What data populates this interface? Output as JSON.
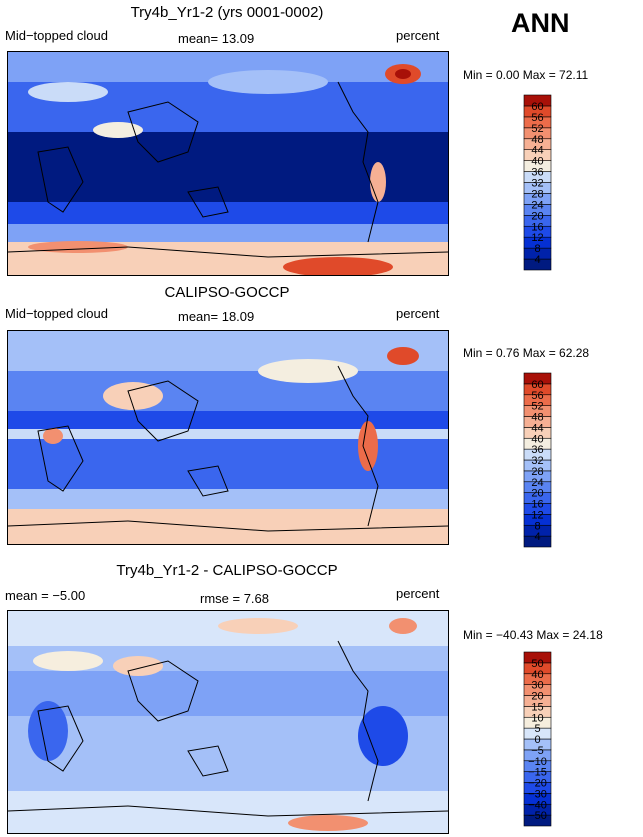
{
  "season": "ANN",
  "panels": [
    {
      "title": "Try4b_Yr1-2 (yrs 0001-0002)",
      "left_label": "Mid−topped cloud",
      "center_label": "mean=  13.09",
      "right_label": "percent",
      "minmax": "Min =    0.00 Max =  72.11",
      "colorbar": {
        "levels": [
          "4",
          "8",
          "12",
          "16",
          "20",
          "24",
          "28",
          "32",
          "36",
          "40",
          "44",
          "48",
          "52",
          "56",
          "60"
        ],
        "colors": [
          "#001a80",
          "#0022aa",
          "#0530d4",
          "#1e4ae8",
          "#3a66ee",
          "#5a84f2",
          "#7ea2f6",
          "#a4c0f8",
          "#cadcf8",
          "#f4eee0",
          "#f8d0b8",
          "#f6b094",
          "#f29070",
          "#ec6c4a",
          "#e04a2a",
          "#a81008"
        ]
      }
    },
    {
      "title": "CALIPSO-GOCCP",
      "left_label": "Mid−topped cloud",
      "center_label": "mean=  18.09",
      "right_label": "percent",
      "minmax": "Min =    0.76 Max =  62.28",
      "colorbar": {
        "levels": [
          "4",
          "8",
          "12",
          "16",
          "20",
          "24",
          "28",
          "32",
          "36",
          "40",
          "44",
          "48",
          "52",
          "56",
          "60"
        ],
        "colors": [
          "#001a80",
          "#0022aa",
          "#0530d4",
          "#1e4ae8",
          "#3a66ee",
          "#5a84f2",
          "#7ea2f6",
          "#a4c0f8",
          "#cadcf8",
          "#f4eee0",
          "#f8d0b8",
          "#f6b094",
          "#f29070",
          "#ec6c4a",
          "#e04a2a",
          "#a81008"
        ]
      }
    },
    {
      "title": "Try4b_Yr1-2 - CALIPSO-GOCCP",
      "left_label": "mean =  −5.00",
      "center_label": "rmse =   7.68",
      "right_label": "percent",
      "minmax": "Min = −40.43 Max =  24.18",
      "colorbar": {
        "levels": [
          "−50",
          "−40",
          "−30",
          "−20",
          "−15",
          "−10",
          "−5",
          "0",
          "5",
          "10",
          "15",
          "20",
          "30",
          "40",
          "50"
        ],
        "colors": [
          "#001a80",
          "#0022aa",
          "#0530d4",
          "#1e4ae8",
          "#3a66ee",
          "#5a84f2",
          "#7ea2f6",
          "#a4c0f8",
          "#d8e6fa",
          "#f6eede",
          "#f8d0b8",
          "#f6b094",
          "#f29070",
          "#ec6c4a",
          "#e04a2a",
          "#a81008"
        ]
      }
    }
  ],
  "chart_data": [
    {
      "type": "heatmap",
      "title": "Try4b_Yr1-2 (yrs 0001-0002)",
      "variable": "Mid-topped cloud",
      "units": "percent",
      "mean": 13.09,
      "min": 0.0,
      "max": 72.11,
      "contour_levels": [
        4,
        8,
        12,
        16,
        20,
        24,
        28,
        32,
        36,
        40,
        44,
        48,
        52,
        56,
        60
      ]
    },
    {
      "type": "heatmap",
      "title": "CALIPSO-GOCCP",
      "variable": "Mid-topped cloud",
      "units": "percent",
      "mean": 18.09,
      "min": 0.76,
      "max": 62.28,
      "contour_levels": [
        4,
        8,
        12,
        16,
        20,
        24,
        28,
        32,
        36,
        40,
        44,
        48,
        52,
        56,
        60
      ]
    },
    {
      "type": "heatmap",
      "title": "Try4b_Yr1-2 - CALIPSO-GOCCP",
      "units": "percent",
      "mean": -5.0,
      "rmse": 7.68,
      "min": -40.43,
      "max": 24.18,
      "contour_levels": [
        -50,
        -40,
        -30,
        -20,
        -15,
        -10,
        -5,
        0,
        5,
        10,
        15,
        20,
        30,
        40,
        50
      ]
    }
  ]
}
